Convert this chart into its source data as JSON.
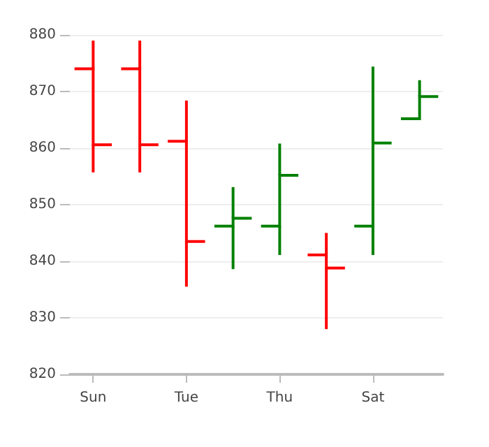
{
  "chart_data": {
    "type": "candlestick",
    "categories": [
      "Sun",
      null,
      "Tue",
      null,
      "Thu",
      null,
      "Sat",
      null
    ],
    "ohlc": [
      [
        874,
        879,
        855.7,
        860.6
      ],
      [
        874,
        879,
        855.7,
        860.6
      ],
      [
        861.2,
        868.4,
        835.5,
        843.5
      ],
      [
        846.2,
        853.1,
        838.6,
        847.6
      ],
      [
        846.2,
        860.8,
        841.1,
        855.2
      ],
      [
        841.1,
        845,
        828,
        838.8
      ],
      [
        846.2,
        874.4,
        841.1,
        860.9
      ],
      [
        865.2,
        872,
        865.2,
        869.1
      ]
    ],
    "colors": [
      "#ff0000",
      "#ff0000",
      "#ff0000",
      "#008000",
      "#008000",
      "#ff0000",
      "#008000",
      "#008000"
    ],
    "ylim": [
      820,
      880
    ],
    "yticks": [
      820,
      830,
      840,
      850,
      860,
      870,
      880
    ],
    "grid": "y"
  }
}
